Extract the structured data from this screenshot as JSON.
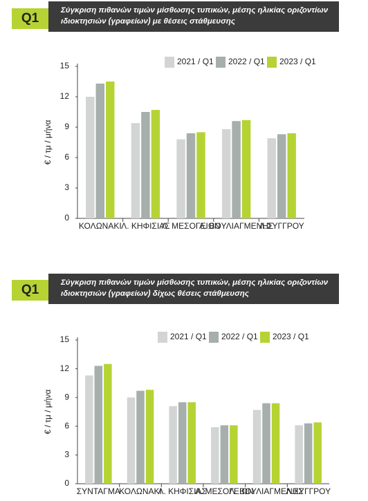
{
  "chart_data": [
    {
      "type": "bar",
      "badge": "Q1",
      "title": "Σύγκριση πιθανών τιμών μίσθωσης τυπικών, μέσης ηλικίας οριζοντίων ιδιοκτησιών (γραφείων) με θέσεις στάθμευσης",
      "y_label": "€ / τμ / μήνα",
      "categories": [
        "ΚΟΛΩΝΑΚΙ",
        "Λ. ΚΗΦΙΣΙΑΣ",
        "Λ. ΜΕΣΟΓΕΙΩΝ",
        "Λ. ΒΟΥΛΙΑΓΜΕΝΗΣ",
        "Λ.ΣΥΓΓΡΟΥ"
      ],
      "series": [
        {
          "name": "2021 / Q1",
          "color": "#d2d5d4",
          "values": [
            12.0,
            9.4,
            7.8,
            8.8,
            7.9
          ]
        },
        {
          "name": "2022 / Q1",
          "color": "#a6afab",
          "values": [
            13.3,
            10.5,
            8.4,
            9.6,
            8.3
          ]
        },
        {
          "name": "2023 / Q1",
          "color": "#b6d334",
          "values": [
            13.5,
            10.7,
            8.5,
            9.7,
            8.4
          ]
        }
      ],
      "ylim": [
        0,
        15
      ],
      "yticks": [
        0,
        3,
        6,
        9,
        12,
        15
      ],
      "legend": "top-right"
    },
    {
      "type": "bar",
      "badge": "Q1",
      "title": "Σύγκριση πιθανών τιμών μίσθωσης τυπικών, μέσης ηλικίας οριζοντίων ιδιοκτησιών (γραφείων) δίχως θέσεις στάθμευσης",
      "y_label": "€ / τμ / μήνα",
      "categories": [
        "ΣΥΝΤΑΓΜΑ",
        "ΚΟΛΩΝΑΚΙ",
        "Λ. ΚΗΦΙΣΙΑΣ",
        "Λ. ΜΕΣΟΓΕΙΩΝ",
        "Λ. ΒΟΥΛΙΑΓΜΕΝΗΣ",
        "Λ.ΣΥΓΓΡΟΥ"
      ],
      "series": [
        {
          "name": "2021 / Q1",
          "color": "#d2d5d4",
          "values": [
            11.3,
            9.0,
            8.1,
            5.9,
            7.7,
            6.1
          ]
        },
        {
          "name": "2022 / Q1",
          "color": "#a6afab",
          "values": [
            12.3,
            9.7,
            8.5,
            6.1,
            8.4,
            6.3
          ]
        },
        {
          "name": "2023 / Q1",
          "color": "#b6d334",
          "values": [
            12.5,
            9.8,
            8.5,
            6.1,
            8.4,
            6.4
          ]
        }
      ],
      "ylim": [
        0,
        15
      ],
      "yticks": [
        0,
        3,
        6,
        9,
        12,
        15
      ],
      "legend": "top-right"
    }
  ]
}
